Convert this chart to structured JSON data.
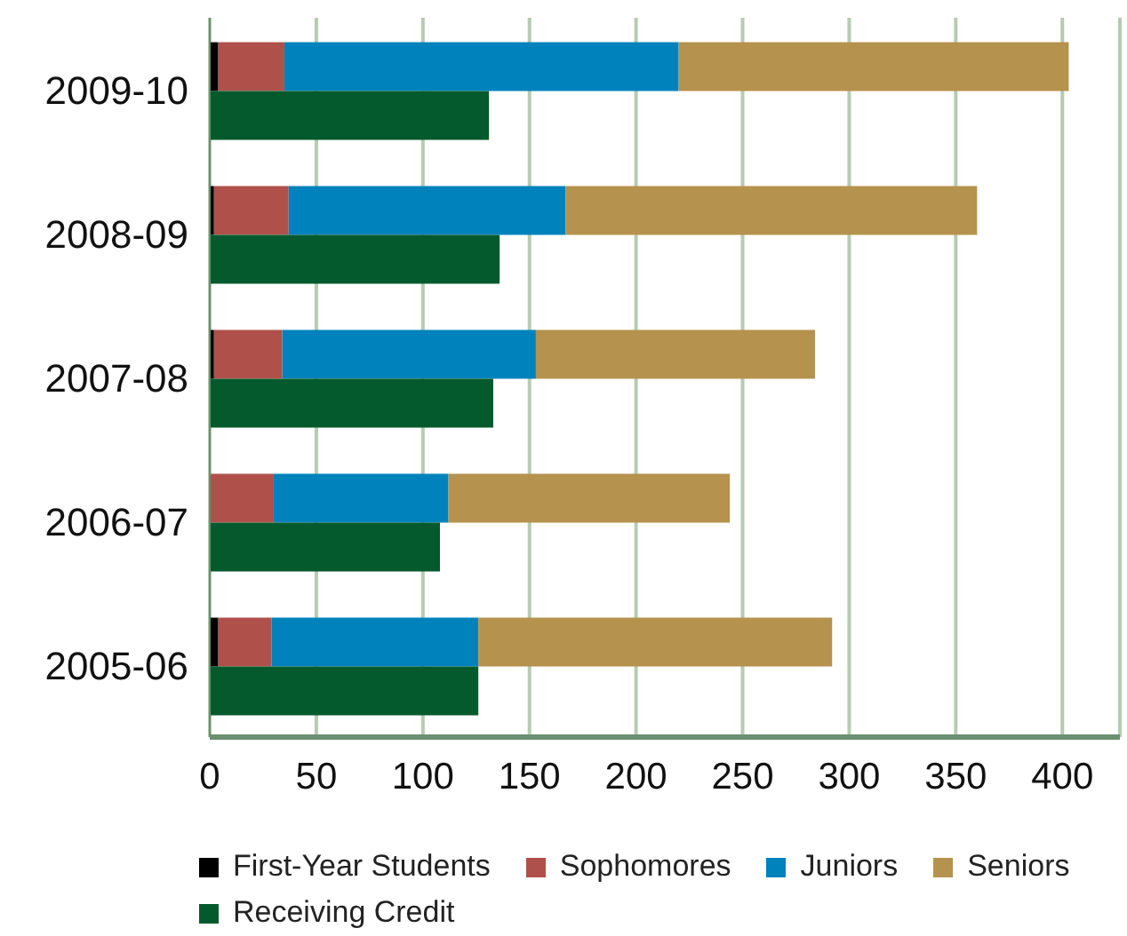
{
  "chart_data": {
    "type": "bar",
    "orientation": "horizontal",
    "categories": [
      "2009-10",
      "2008-09",
      "2007-08",
      "2006-07",
      "2005-06"
    ],
    "series": [
      {
        "name": "First-Year Students",
        "color": "#000000",
        "values": [
          4,
          2,
          2,
          null,
          4
        ],
        "base": [
          0,
          0,
          0,
          null,
          0
        ]
      },
      {
        "name": "Sophomores",
        "color": "#b0504a",
        "values": [
          31,
          35,
          32,
          30,
          25
        ],
        "base": [
          4,
          2,
          2,
          0,
          4
        ]
      },
      {
        "name": "Juniors",
        "color": "#0082bc",
        "values": [
          185,
          130,
          119,
          82,
          97
        ],
        "base": [
          35,
          37,
          34,
          30,
          29
        ]
      },
      {
        "name": "Seniors",
        "color": "#b5924e",
        "values": [
          183,
          193,
          131,
          132,
          166
        ],
        "base": [
          220,
          167,
          153,
          112,
          126
        ]
      },
      {
        "name": "Receiving Credit",
        "color": "#045a2c",
        "values": [
          131,
          136,
          133,
          108,
          126
        ]
      }
    ],
    "xlim": [
      0,
      427
    ],
    "xticks": [
      0,
      50,
      100,
      150,
      200,
      250,
      300,
      350,
      400
    ],
    "grid": "x",
    "legend": "bottom"
  }
}
